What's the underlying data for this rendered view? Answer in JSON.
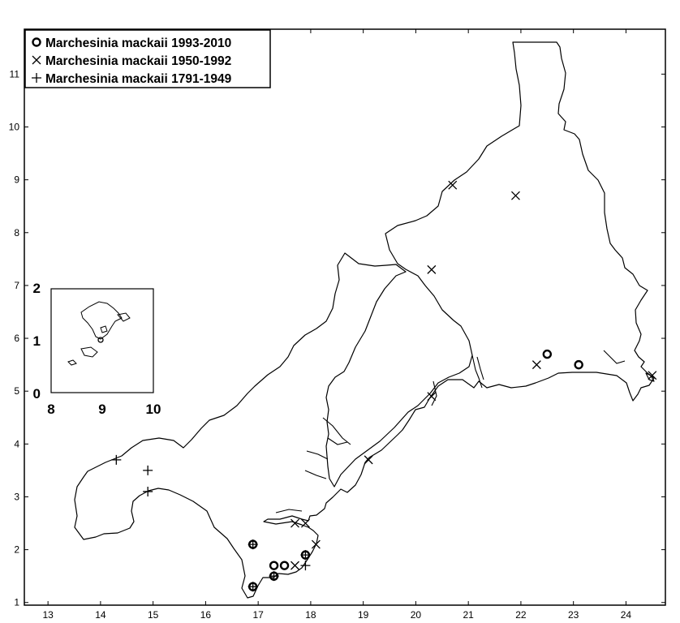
{
  "map": {
    "x_ticks": [
      "13",
      "14",
      "15",
      "16",
      "17",
      "18",
      "19",
      "20",
      "21",
      "22",
      "23",
      "24"
    ],
    "y_ticks": [
      "1",
      "2",
      "3",
      "4",
      "5",
      "6",
      "7",
      "8",
      "9",
      "10",
      "11"
    ],
    "x_range": [
      12.55,
      24.75
    ],
    "y_range": [
      0.95,
      11.85
    ]
  },
  "legend": {
    "entries": [
      {
        "symbol": "circle",
        "label": "Marchesinia mackaii 1993-2010"
      },
      {
        "symbol": "cross",
        "label": "Marchesinia mackaii 1950-1992"
      },
      {
        "symbol": "plus",
        "label": "Marchesinia mackaii 1791-1949"
      }
    ]
  },
  "inset": {
    "x_ticks": [
      "8",
      "9",
      "10"
    ],
    "y_ticks": [
      "0",
      "1",
      "2"
    ]
  },
  "records": {
    "circle": [
      [
        16.9,
        2.1
      ],
      [
        17.3,
        1.7
      ],
      [
        17.5,
        1.7
      ],
      [
        17.9,
        1.9
      ],
      [
        16.9,
        1.3
      ],
      [
        17.3,
        1.5
      ],
      [
        22.5,
        5.7
      ],
      [
        23.1,
        5.5
      ]
    ],
    "cross": [
      [
        20.7,
        8.9
      ],
      [
        21.9,
        8.7
      ],
      [
        20.3,
        7.3
      ],
      [
        22.3,
        5.5
      ],
      [
        24.5,
        5.3
      ],
      [
        20.3,
        4.9
      ],
      [
        19.1,
        3.7
      ],
      [
        17.7,
        2.5
      ],
      [
        17.9,
        2.5
      ],
      [
        18.1,
        2.1
      ],
      [
        17.7,
        1.7
      ]
    ],
    "plus": [
      [
        14.3,
        3.7
      ],
      [
        14.9,
        3.5
      ],
      [
        14.9,
        3.1
      ],
      [
        16.9,
        2.1
      ],
      [
        17.9,
        1.9
      ],
      [
        17.9,
        1.7
      ],
      [
        16.9,
        1.3
      ],
      [
        17.3,
        1.5
      ]
    ]
  }
}
